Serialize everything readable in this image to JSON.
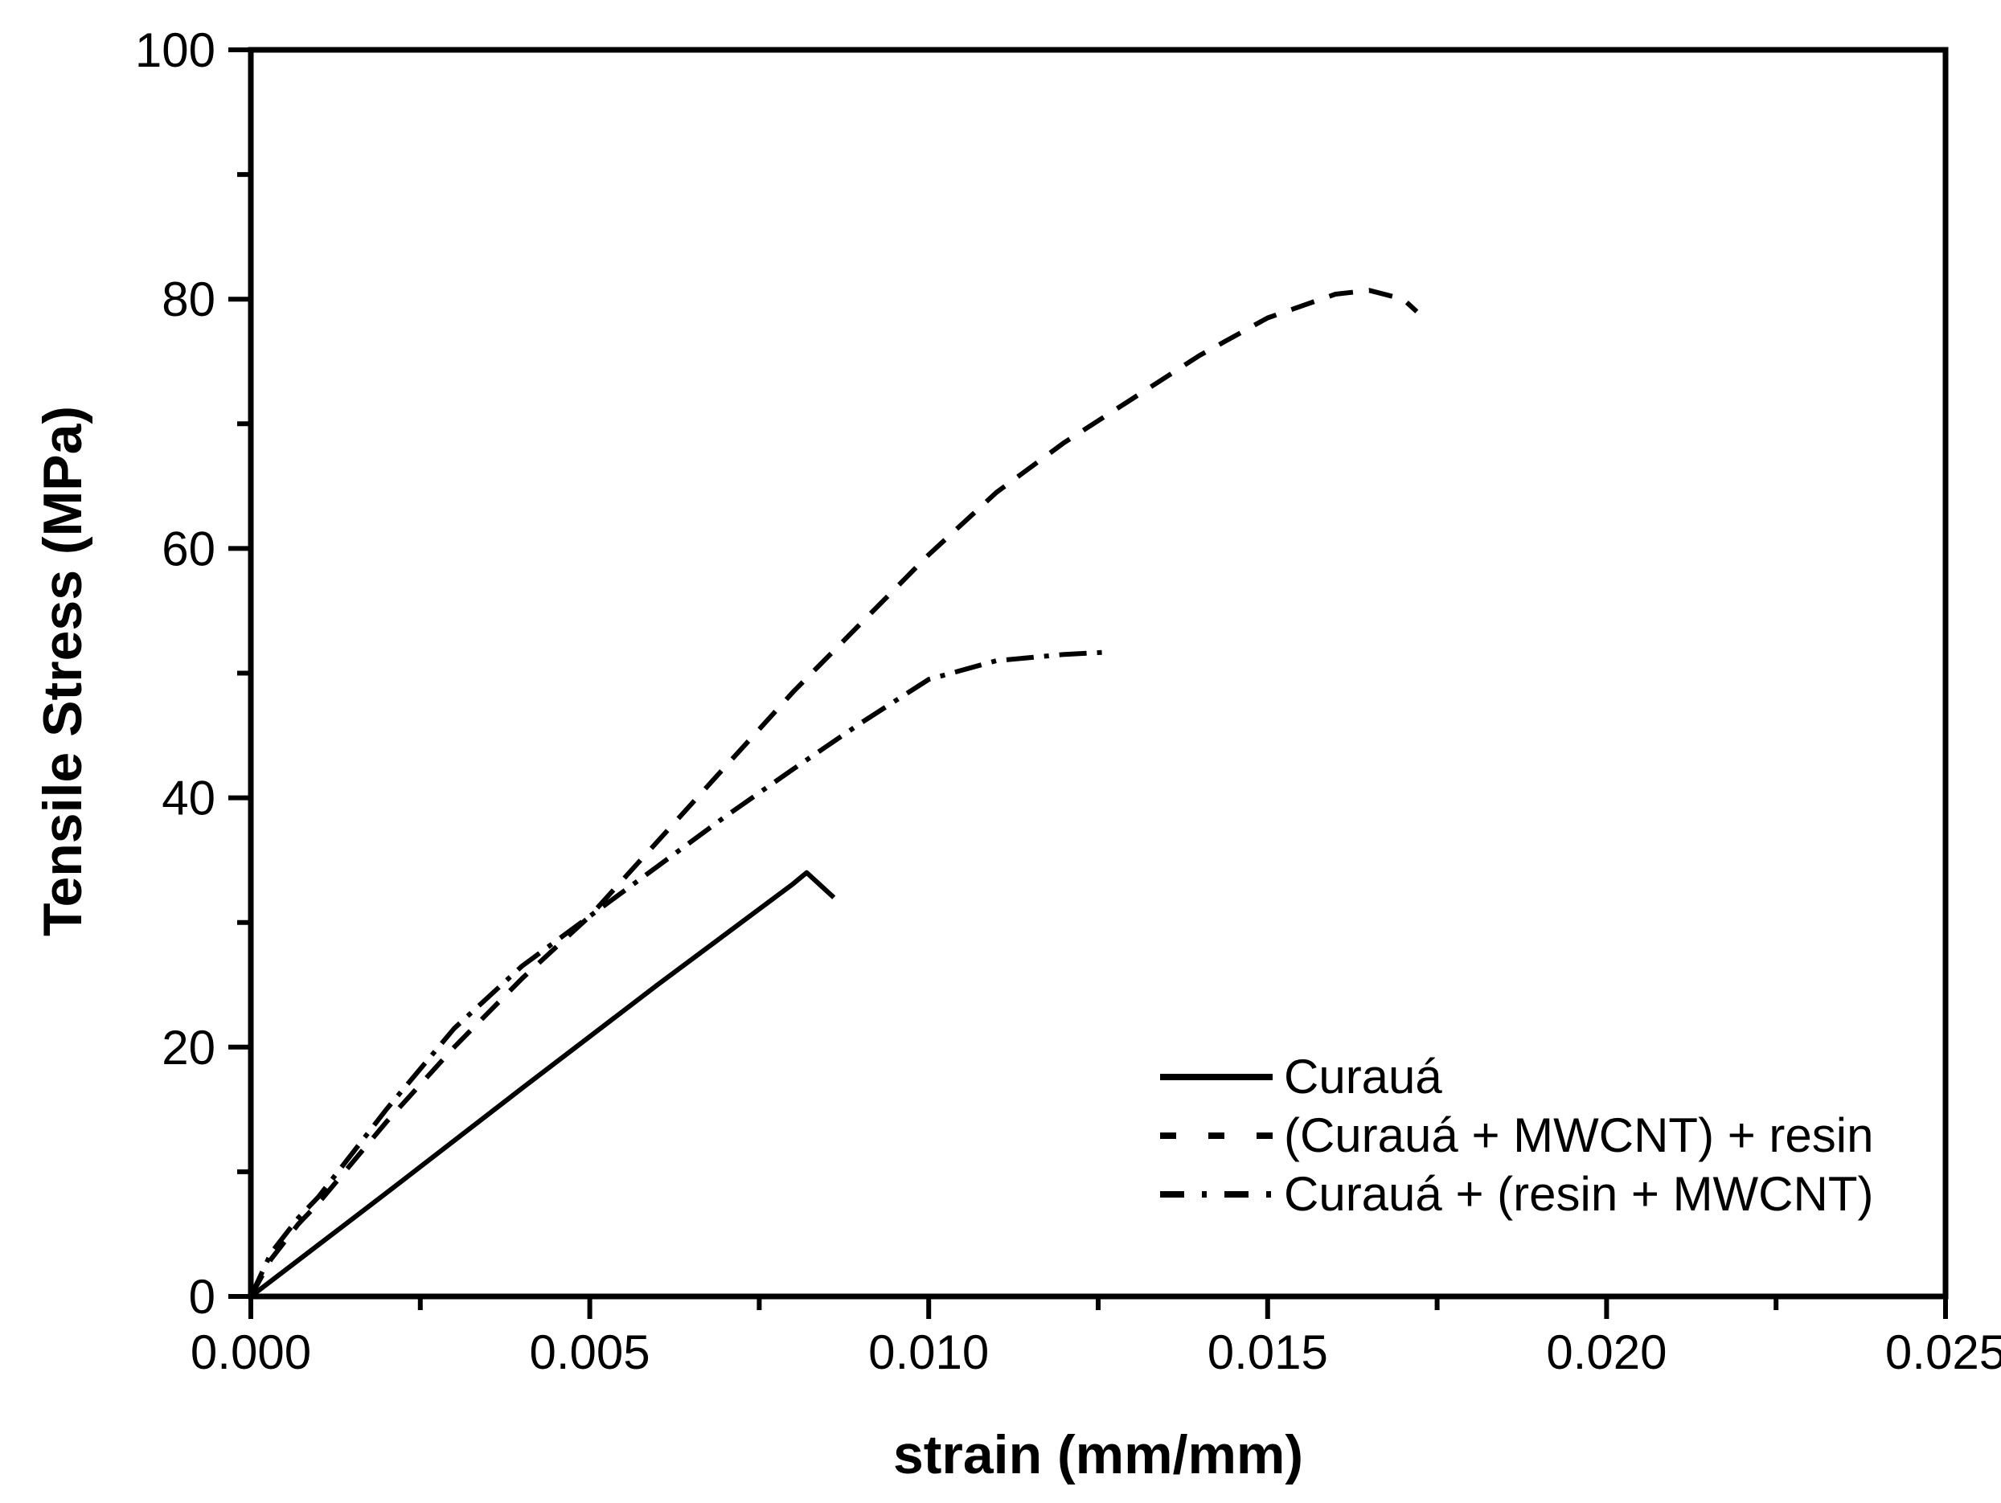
{
  "figure": {
    "background": "#ffffff",
    "ink_color": "#000000"
  },
  "chart_data": {
    "type": "line",
    "title": "",
    "xlabel": "strain (mm/mm)",
    "ylabel": "Tensile Stress (MPa)",
    "xlim": [
      0,
      0.025
    ],
    "ylim": [
      0,
      100
    ],
    "grid": false,
    "legend_position": "inside-lower-right",
    "x_ticks": {
      "major": [
        0,
        0.005,
        0.01,
        0.015,
        0.02,
        0.025
      ],
      "labels": [
        "0.000",
        "0.005",
        "0.010",
        "0.015",
        "0.020",
        "0.025"
      ],
      "minor": [
        0.0025,
        0.0075,
        0.0125,
        0.0175,
        0.0225
      ]
    },
    "y_ticks": {
      "major": [
        0,
        20,
        40,
        60,
        80,
        100
      ],
      "labels": [
        "0",
        "20",
        "40",
        "60",
        "80",
        "100"
      ],
      "minor": [
        10,
        30,
        50,
        70,
        90
      ]
    },
    "series": [
      {
        "name": "Curauá",
        "line_style": "solid",
        "color": "#000000",
        "points": [
          [
            0,
            0
          ],
          [
            0.002,
            8.3
          ],
          [
            0.004,
            16.7
          ],
          [
            0.006,
            25.0
          ],
          [
            0.008,
            33.1
          ],
          [
            0.0082,
            34.0
          ],
          [
            0.0086,
            32.0
          ]
        ]
      },
      {
        "name": "(Curauá + MWCNT) + resin",
        "line_style": "dashed",
        "color": "#000000",
        "points": [
          [
            0,
            0
          ],
          [
            0.0003,
            3.0
          ],
          [
            0.0007,
            5.8
          ],
          [
            0.001,
            7.5
          ],
          [
            0.002,
            14.0
          ],
          [
            0.003,
            20.0
          ],
          [
            0.004,
            25.5
          ],
          [
            0.005,
            30.5
          ],
          [
            0.006,
            36.5
          ],
          [
            0.007,
            42.5
          ],
          [
            0.008,
            48.5
          ],
          [
            0.009,
            54.0
          ],
          [
            0.01,
            59.5
          ],
          [
            0.011,
            64.5
          ],
          [
            0.012,
            68.5
          ],
          [
            0.013,
            72.0
          ],
          [
            0.014,
            75.5
          ],
          [
            0.015,
            78.5
          ],
          [
            0.016,
            80.4
          ],
          [
            0.0165,
            80.7
          ],
          [
            0.017,
            80.0
          ],
          [
            0.0172,
            79.0
          ]
        ]
      },
      {
        "name": "Curauá + (resin + MWCNT)",
        "line_style": "dash-dot",
        "color": "#000000",
        "points": [
          [
            0,
            0
          ],
          [
            0.0003,
            3.5
          ],
          [
            0.0007,
            6.3
          ],
          [
            0.001,
            8.0
          ],
          [
            0.002,
            15.0
          ],
          [
            0.003,
            21.5
          ],
          [
            0.004,
            26.5
          ],
          [
            0.005,
            30.5
          ],
          [
            0.006,
            34.5
          ],
          [
            0.007,
            38.5
          ],
          [
            0.008,
            42.3
          ],
          [
            0.009,
            46.0
          ],
          [
            0.01,
            49.5
          ],
          [
            0.011,
            51.0
          ],
          [
            0.012,
            51.5
          ],
          [
            0.0127,
            51.7
          ]
        ]
      }
    ]
  }
}
